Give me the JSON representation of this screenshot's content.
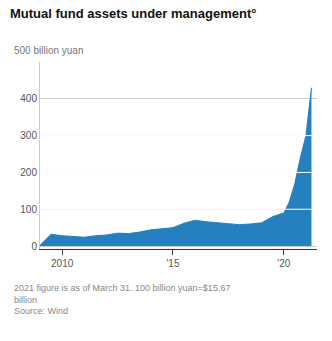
{
  "chart_data": {
    "type": "area",
    "title": "Mutual fund assets under management°",
    "ylabel": "500 billion yuan",
    "annotations": [
      "2021 figure is as of March 31. 100 billion yuan=$15.67\nbillion\nSource: Wind"
    ],
    "x": [
      2009.0,
      2009.5,
      2010.0,
      2010.5,
      2011.0,
      2011.5,
      2012.0,
      2012.5,
      2013.0,
      2013.5,
      2014.0,
      2014.5,
      2015.0,
      2015.5,
      2016.0,
      2016.5,
      2017.0,
      2017.5,
      2018.0,
      2018.5,
      2019.0,
      2019.5,
      2020.0,
      2020.25,
      2020.5,
      2020.75,
      2021.0,
      2021.25
    ],
    "values": [
      2,
      32,
      28,
      25,
      24,
      28,
      30,
      35,
      34,
      38,
      44,
      47,
      50,
      62,
      70,
      66,
      64,
      62,
      58,
      60,
      63,
      80,
      90,
      120,
      170,
      240,
      300,
      430
    ],
    "color": "#2480be",
    "xlim": [
      2009.0,
      2021.5
    ],
    "xticks": [
      2010,
      {
        "value": 2015,
        "label": "'15"
      },
      {
        "value": 2020,
        "label": "'20"
      }
    ],
    "ylim": [
      -8,
      500
    ],
    "yticks": [
      0,
      100,
      200,
      300,
      400
    ],
    "grid": true
  }
}
